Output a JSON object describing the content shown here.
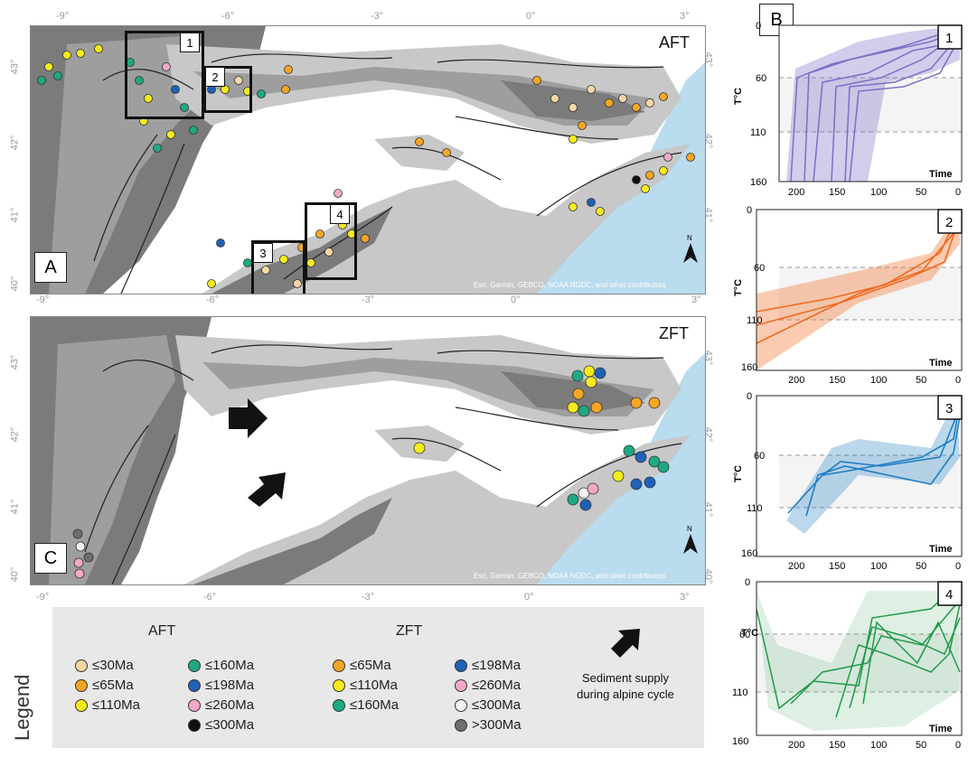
{
  "map_a": {
    "panel_label": "A",
    "dataset_label": "AFT",
    "attribution": "Esri, Garmin, GEBCO, NOAA NGDC, and other contributors",
    "north_label": "N",
    "lon_ticks": [
      "-9°",
      "-6°",
      "-3°",
      "0°",
      "3°"
    ],
    "lat_ticks": [
      "43°",
      "42°",
      "41°",
      "40°"
    ],
    "box_labels": [
      "1",
      "2",
      "3",
      "4"
    ]
  },
  "map_c": {
    "panel_label": "C",
    "dataset_label": "ZFT",
    "attribution": "Esri, Garmin, GEBCO, NOAA NGDC, and other contributors",
    "north_label": "N",
    "lon_ticks": [
      "-9°",
      "-6°",
      "-3°",
      "0°",
      "3°"
    ],
    "lat_ticks": [
      "43°",
      "42°",
      "41°",
      "40°"
    ]
  },
  "panel_b_label": "B",
  "colors": {
    "ocean": "#b9dcef",
    "basin": "#ffffff",
    "dark_relief": "#7b7b7b",
    "mid_relief": "#9e9e9e",
    "light_relief": "#c8c8c8",
    "le30": "#f6d7a4",
    "le65": "#f4a624",
    "le110": "#f7ea1d",
    "le160": "#1ea983",
    "le198": "#1f61b8",
    "le260": "#f1a8c9",
    "le300_black": "#111111",
    "le300_white": "#f2f2f2",
    "gt300": "#6e6e6e",
    "plot1": "#7b6fc6",
    "plot2": "#f26a1f",
    "plot3": "#1d7fc4",
    "plot4": "#1f9a48"
  },
  "legend": {
    "title": "Legend",
    "aft_heading": "AFT",
    "zft_heading": "ZFT",
    "aft_items": [
      {
        "label": "≤30Ma",
        "color": "#f6d7a4"
      },
      {
        "label": "≤65Ma",
        "color": "#f4a624"
      },
      {
        "label": "≤110Ma",
        "color": "#f7ea1d"
      },
      {
        "label": "≤160Ma",
        "color": "#1ea983"
      },
      {
        "label": "≤198Ma",
        "color": "#1f61b8"
      },
      {
        "label": "≤260Ma",
        "color": "#f1a8c9"
      },
      {
        "label": "≤300Ma",
        "color": "#111111"
      }
    ],
    "zft_items": [
      {
        "label": "≤65Ma",
        "color": "#f4a624"
      },
      {
        "label": "≤110Ma",
        "color": "#f7ea1d"
      },
      {
        "label": "≤160Ma",
        "color": "#1ea983"
      },
      {
        "label": "≤198Ma",
        "color": "#1f61b8"
      },
      {
        "label": "≤260Ma",
        "color": "#f1a8c9"
      },
      {
        "label": "≤300Ma",
        "color": "#f2f2f2"
      },
      {
        "label": ">300Ma",
        "color": "#6e6e6e"
      }
    ],
    "arrow_label": "Sediment supply during alpine cycle"
  },
  "plots": [
    {
      "num": "1",
      "ylabel": "T°C",
      "xlabel": "Time",
      "yticks": [
        0,
        60,
        110,
        160
      ],
      "xticks": [
        200,
        150,
        100,
        50,
        0
      ],
      "color": "#7b6fc6"
    },
    {
      "num": "2",
      "ylabel": "T°C",
      "xlabel": "Time",
      "yticks": [
        0,
        60,
        110,
        160
      ],
      "xticks": [
        200,
        150,
        100,
        50,
        0
      ],
      "color": "#f26a1f"
    },
    {
      "num": "3",
      "ylabel": "T°C",
      "xlabel": "Time",
      "yticks": [
        0,
        60,
        110,
        160
      ],
      "xticks": [
        200,
        150,
        100,
        50,
        0
      ],
      "color": "#1d7fc4"
    },
    {
      "num": "4",
      "ylabel": "T°C",
      "xlabel": "Time",
      "yticks": [
        0,
        60,
        110,
        160
      ],
      "xticks": [
        200,
        150,
        100,
        50,
        0
      ],
      "color": "#1f9a48"
    }
  ]
}
